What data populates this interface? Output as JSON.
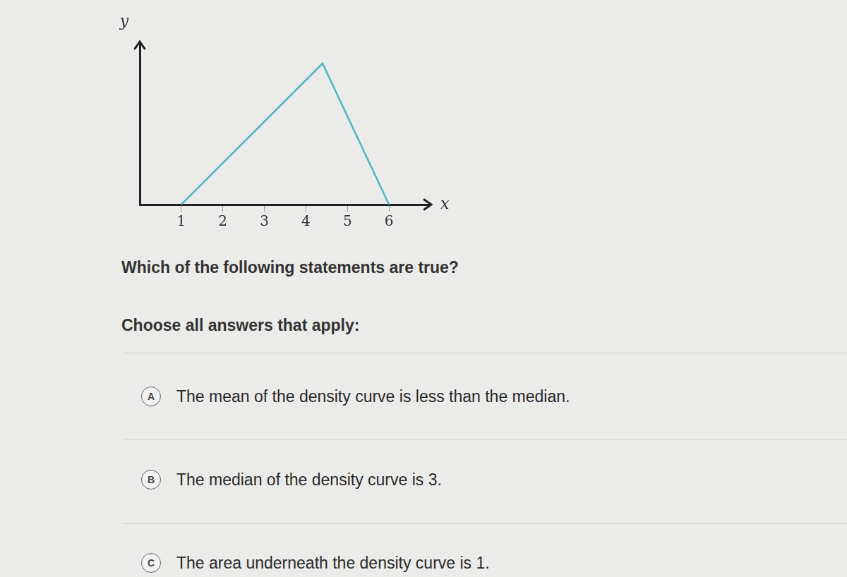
{
  "chart_data": {
    "type": "line",
    "x_label": "x",
    "y_label": "y",
    "x": [
      1,
      4.4,
      6
    ],
    "values": [
      0,
      0.4,
      0
    ],
    "color": "#4db8c9",
    "xlim": [
      0,
      7
    ],
    "xticks": [
      1,
      2,
      3,
      4,
      5,
      6
    ],
    "ylim": [
      0,
      0.46
    ],
    "tick_labels": "x",
    "grid": false
  },
  "question": "Which of the following statements are true?",
  "instruction": "Choose all answers that apply:",
  "options": [
    {
      "letter": "A",
      "text": "The mean of the density curve is less than the median."
    },
    {
      "letter": "B",
      "text": "The median of the density curve is 3."
    },
    {
      "letter": "C",
      "text": "The area underneath the density curve is 1."
    }
  ]
}
